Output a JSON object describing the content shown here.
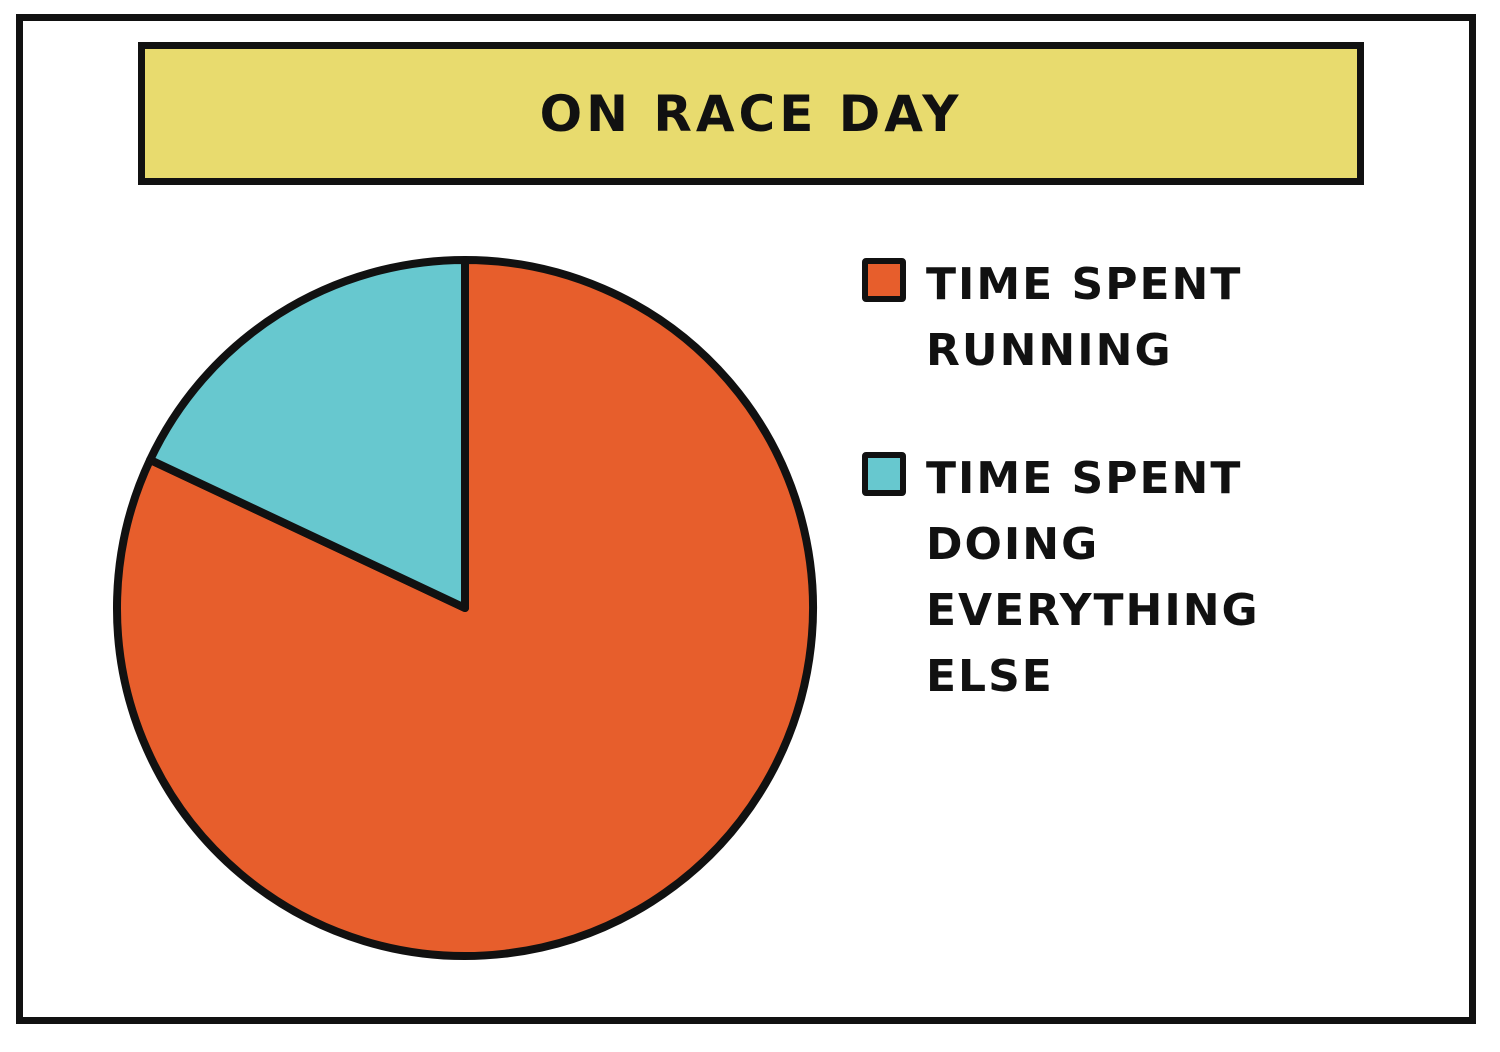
{
  "colors": {
    "banner": "#E8DB6E",
    "outline": "#111111"
  },
  "chart_data": {
    "type": "pie",
    "title": "ON RACE DAY",
    "slices": [
      {
        "label": "TIME SPENT RUNNING",
        "value": 82,
        "color": "#E75E2C"
      },
      {
        "label": "TIME SPENT DOING EVERYTHING ELSE",
        "value": 18,
        "color": "#67C8CF"
      }
    ],
    "legend_position": "right"
  }
}
